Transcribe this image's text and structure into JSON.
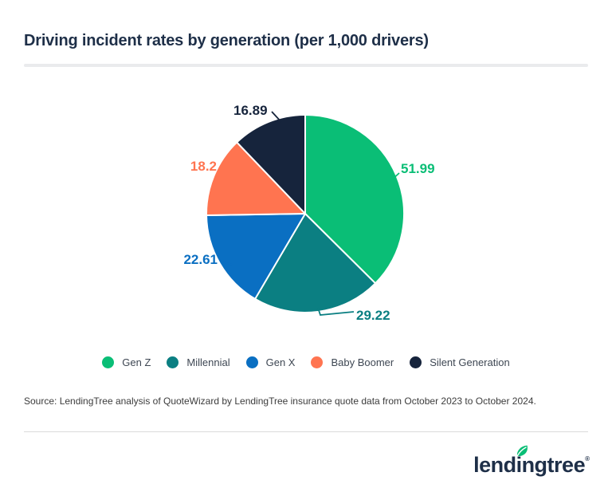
{
  "header": {
    "title": "Driving incident rates by generation (per 1,000 drivers)"
  },
  "chart_data": {
    "type": "pie",
    "title": "Driving incident rates by generation (per 1,000 drivers)",
    "categories": [
      "Gen Z",
      "Millennial",
      "Gen X",
      "Baby Boomer",
      "Silent Generation"
    ],
    "values": [
      51.99,
      29.22,
      22.61,
      18.2,
      16.89
    ],
    "value_labels": [
      "51.99",
      "29.22",
      "22.61",
      "18.2",
      "16.89"
    ],
    "colors": [
      "#0abe76",
      "#0b7f82",
      "#0a6fc2",
      "#ff7450",
      "#16243c"
    ],
    "start_angle": "top",
    "direction": "clockwise",
    "legend_position": "bottom"
  },
  "footer": {
    "source": "Source: LendingTree analysis of QuoteWizard by LendingTree insurance quote data from October 2023 to October 2024.",
    "logo_text": "lendingtree",
    "logo_mark": "®"
  },
  "colors": {
    "title_text": "#1e2f48",
    "legend_text": "#3e4753",
    "brand_green": "#0abe76",
    "divider": "#eaebed"
  }
}
